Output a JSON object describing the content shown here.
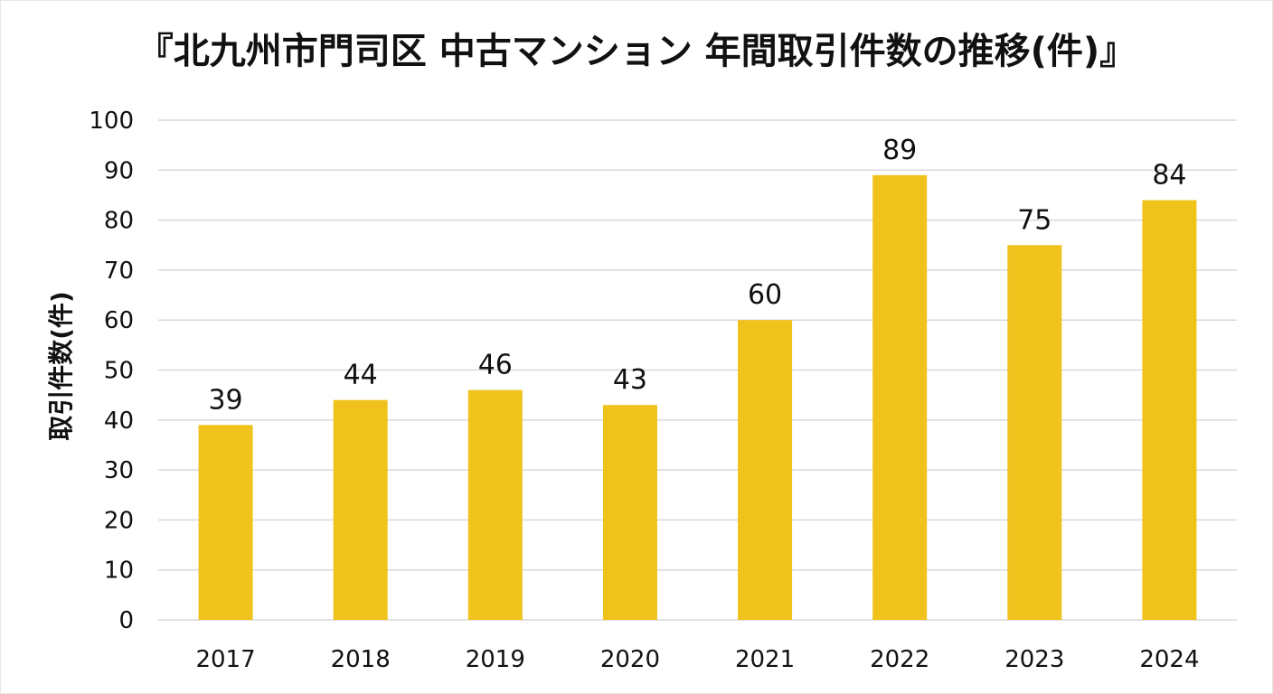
{
  "chart_data": {
    "type": "bar",
    "title": "『北九州市門司区 中古マンション 年間取引件数の推移(件)』",
    "xlabel": "",
    "ylabel": "取引件数(件)",
    "categories": [
      "2017",
      "2018",
      "2019",
      "2020",
      "2021",
      "2022",
      "2023",
      "2024"
    ],
    "values": [
      39,
      44,
      46,
      43,
      60,
      89,
      75,
      84
    ],
    "ylim": [
      0,
      100
    ],
    "yticks": [
      0,
      10,
      20,
      30,
      40,
      50,
      60,
      70,
      80,
      90,
      100
    ],
    "grid": true,
    "legend": "none",
    "bar_color": "#EFC21C",
    "grid_color": "#d9d9d9"
  }
}
